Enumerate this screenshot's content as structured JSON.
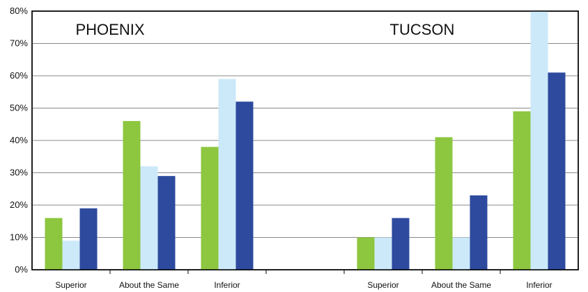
{
  "chart_data": {
    "type": "bar",
    "ylim": [
      0,
      80
    ],
    "yticks": [
      0,
      10,
      20,
      30,
      40,
      50,
      60,
      70,
      80
    ],
    "ytick_labels": [
      "0%",
      "10%",
      "20%",
      "30%",
      "40%",
      "50%",
      "60%",
      "70%",
      "80%"
    ],
    "grid": true,
    "colors": [
      "#8dc63f",
      "#cce9f9",
      "#2e4a9e"
    ],
    "panels": [
      {
        "title": "PHOENIX",
        "categories": [
          "Superior",
          "About the Same",
          "Inferior"
        ],
        "series": [
          {
            "values": [
              16,
              46,
              38
            ]
          },
          {
            "values": [
              9,
              32,
              59
            ]
          },
          {
            "values": [
              19,
              29,
              52
            ]
          }
        ]
      },
      {
        "title": "TUCSON",
        "categories": [
          "Superior",
          "About the Same",
          "Inferior"
        ],
        "series": [
          {
            "values": [
              10,
              41,
              49
            ]
          },
          {
            "values": [
              10,
              10,
              80
            ]
          },
          {
            "values": [
              16,
              23,
              61
            ]
          }
        ]
      }
    ]
  }
}
